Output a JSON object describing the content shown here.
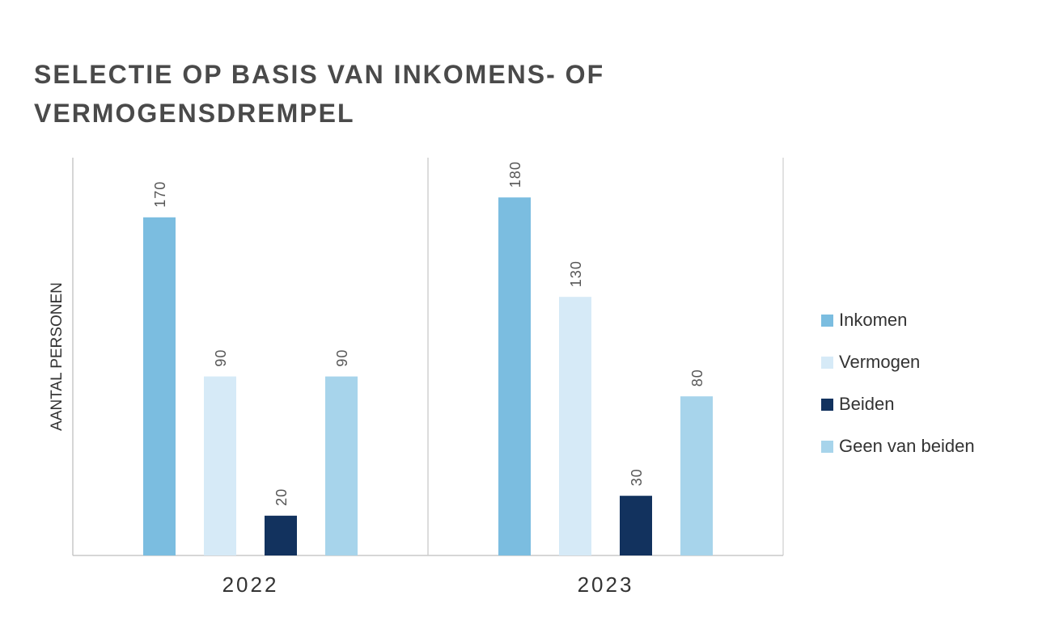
{
  "chart_data": {
    "type": "bar",
    "title_lines": [
      "SELECTIE OP BASIS VAN INKOMENS- OF",
      "VERMOGENSDREMPEL"
    ],
    "ylabel": "AANTAL PERSONEN",
    "xlabel": "",
    "ylim": [
      0,
      200
    ],
    "grid": false,
    "legend_position": "right",
    "categories": [
      "2022",
      "2023"
    ],
    "series": [
      {
        "name": "Inkomen",
        "color": "#7bbde0",
        "values": [
          170,
          180
        ]
      },
      {
        "name": "Vermogen",
        "color": "#d6eaf7",
        "values": [
          90,
          130
        ]
      },
      {
        "name": "Beiden",
        "color": "#12325e",
        "values": [
          20,
          30
        ]
      },
      {
        "name": "Geen van beiden",
        "color": "#a7d4eb",
        "values": [
          90,
          80
        ]
      }
    ]
  }
}
